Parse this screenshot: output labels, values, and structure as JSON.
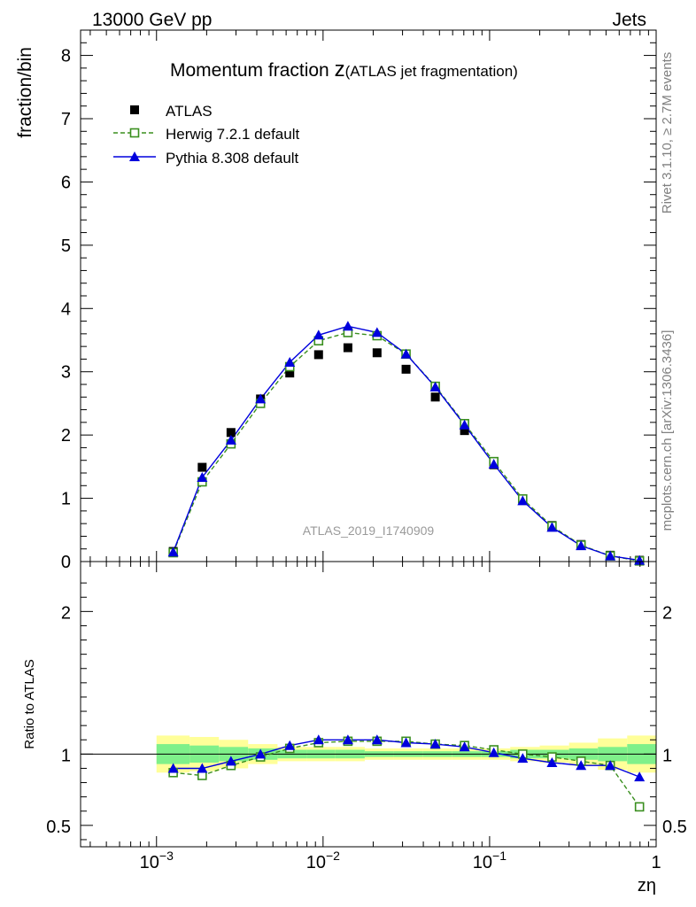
{
  "header": {
    "left": "13000 GeV pp",
    "right": "Jets"
  },
  "side_labels": {
    "rivet": "Rivet 3.1.10, ≥ 2.7M events",
    "mcplots": "mcplots.cern.ch [arXiv:1306.3436]"
  },
  "colors": {
    "atlas": "#000000",
    "herwig": "#3a8f1f",
    "pythia": "#0000dd",
    "band_outer": "#ffff99",
    "band_inner": "#7ff08a"
  },
  "chart_data": [
    {
      "type": "scatter",
      "title_main": "Momentum fraction ",
      "title_var": "z",
      "title_sub": "(ATLAS jet fragmentation)",
      "ylabel": "fraction/bin",
      "watermark": "ATLAS_2019_I1740909",
      "x_scale": "log",
      "xlim": [
        0.00035,
        1.0
      ],
      "ylim": [
        0,
        8.4
      ],
      "y_ticks": [
        0,
        1,
        2,
        3,
        4,
        5,
        6,
        7,
        8
      ],
      "x": [
        0.00126,
        0.00188,
        0.0028,
        0.00421,
        0.00631,
        0.0094,
        0.0141,
        0.0211,
        0.0315,
        0.0472,
        0.0707,
        0.106,
        0.158,
        0.237,
        0.354,
        0.53,
        0.794
      ],
      "series": [
        {
          "name": "ATLAS",
          "marker": "square-filled",
          "values": [
            0.16,
            1.49,
            2.04,
            2.57,
            2.98,
            3.27,
            3.38,
            3.3,
            3.04,
            2.6,
            2.07,
            1.53,
            0.99,
            0.57,
            0.27,
            0.1,
            0.02
          ]
        },
        {
          "name": "Herwig 7.2.1 default",
          "marker": "square-open",
          "line": "dashed",
          "values": [
            0.14,
            1.26,
            1.86,
            2.5,
            3.08,
            3.49,
            3.62,
            3.57,
            3.28,
            2.77,
            2.18,
            1.58,
            0.99,
            0.56,
            0.26,
            0.09,
            0.01
          ]
        },
        {
          "name": "Pythia 8.308 default",
          "marker": "triangle-filled",
          "line": "solid",
          "values": [
            0.15,
            1.33,
            1.92,
            2.57,
            3.15,
            3.58,
            3.72,
            3.62,
            3.28,
            2.76,
            2.16,
            1.54,
            0.96,
            0.54,
            0.25,
            0.09,
            0.02
          ]
        }
      ]
    },
    {
      "type": "line",
      "ylabel": "Ratio to ATLAS",
      "xlabel": "zη",
      "x_scale": "log",
      "xlim": [
        0.00035,
        1.0
      ],
      "ylim": [
        0.35,
        2.35
      ],
      "y_ticks": [
        0.5,
        1,
        2
      ],
      "y_tick_labels": [
        "0.5",
        "1",
        "2"
      ],
      "x_ticks": [
        0.001,
        0.01,
        0.1,
        1
      ],
      "x_tick_labels": [
        "10−3",
        "10−2",
        "10−1",
        "1"
      ],
      "x": [
        0.00126,
        0.00188,
        0.0028,
        0.00421,
        0.00631,
        0.0094,
        0.0141,
        0.0211,
        0.0315,
        0.0472,
        0.0707,
        0.106,
        0.158,
        0.237,
        0.354,
        0.53,
        0.794
      ],
      "band_edges": [
        0.001,
        0.00158,
        0.00237,
        0.00355,
        0.00533,
        0.008,
        0.0118,
        0.0178,
        0.0265,
        0.0398,
        0.0597,
        0.0893,
        0.133,
        0.2,
        0.3,
        0.447,
        0.67,
        1.0
      ],
      "band_outer": [
        0.13,
        0.12,
        0.1,
        0.07,
        0.05,
        0.05,
        0.05,
        0.04,
        0.04,
        0.04,
        0.04,
        0.04,
        0.05,
        0.06,
        0.08,
        0.11,
        0.13
      ],
      "band_inner": [
        0.07,
        0.06,
        0.05,
        0.04,
        0.03,
        0.03,
        0.03,
        0.02,
        0.02,
        0.02,
        0.02,
        0.02,
        0.03,
        0.03,
        0.04,
        0.05,
        0.07
      ],
      "series": [
        {
          "name": "Herwig 7.2.1 default",
          "marker": "square-open",
          "line": "dashed",
          "values": [
            0.87,
            0.85,
            0.92,
            0.98,
            1.04,
            1.08,
            1.09,
            1.09,
            1.09,
            1.07,
            1.06,
            1.03,
            1.0,
            0.98,
            0.95,
            0.92,
            0.63
          ]
        },
        {
          "name": "Pythia 8.308 default",
          "marker": "triangle-filled",
          "line": "solid",
          "values": [
            0.9,
            0.9,
            0.95,
            1.0,
            1.06,
            1.1,
            1.1,
            1.1,
            1.08,
            1.07,
            1.05,
            1.01,
            0.97,
            0.94,
            0.92,
            0.92,
            0.84
          ]
        }
      ]
    }
  ]
}
